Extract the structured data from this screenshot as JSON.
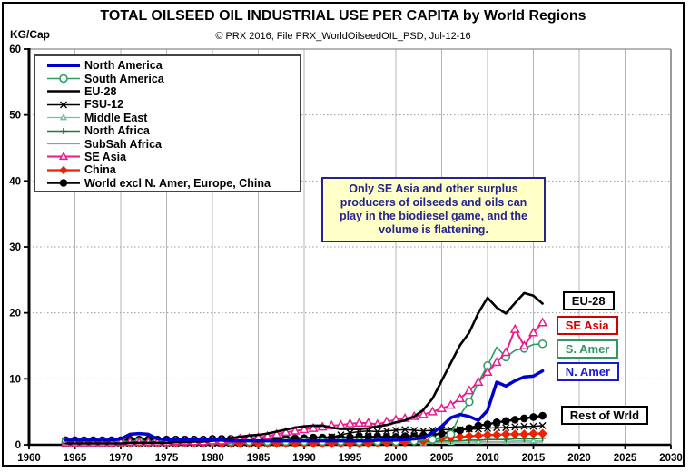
{
  "header": {
    "title": "TOTAL OILSEED OIL INDUSTRIAL USE PER CAPITA by World Regions",
    "subtitle": "© PRX 2016, File PRX_WorldOilseedOIL_PSD, Jul-12-16",
    "y_axis_unit": "KG/Cap"
  },
  "annotation": {
    "text": "Only SE Asia and other surplus producers of oilseeds and oils can play in the biodiesel game, and the volume is flattening.",
    "text_color": "#24248C",
    "background": "#FFFFC8"
  },
  "chart_data": {
    "type": "line",
    "title": "TOTAL OILSEED OIL INDUSTRIAL USE PER CAPITA by World Regions",
    "xlabel": "",
    "ylabel": "KG/Cap",
    "xlim": [
      1960,
      2030
    ],
    "ylim": [
      0,
      60
    ],
    "x_ticks": [
      1960,
      1965,
      1970,
      1975,
      1980,
      1985,
      1990,
      1995,
      2000,
      2005,
      2010,
      2015,
      2020,
      2025,
      2030
    ],
    "y_ticks": [
      0,
      10,
      20,
      30,
      40,
      50,
      60
    ],
    "grid": true,
    "legend_position": "top-left",
    "x": [
      1964,
      1965,
      1966,
      1967,
      1968,
      1969,
      1970,
      1971,
      1972,
      1973,
      1974,
      1975,
      1976,
      1977,
      1978,
      1979,
      1980,
      1981,
      1982,
      1983,
      1984,
      1985,
      1986,
      1987,
      1988,
      1989,
      1990,
      1991,
      1992,
      1993,
      1994,
      1995,
      1996,
      1997,
      1998,
      1999,
      2000,
      2001,
      2002,
      2003,
      2004,
      2005,
      2006,
      2007,
      2008,
      2009,
      2010,
      2011,
      2012,
      2013,
      2014,
      2015,
      2016
    ],
    "series": [
      {
        "name": "North America",
        "color": "#0000CC",
        "line_width": 3.5,
        "marker": "none",
        "marker_size": 0,
        "marker_every": 1,
        "values": [
          0.7,
          0.7,
          0.7,
          0.7,
          0.7,
          0.7,
          0.9,
          1.6,
          1.7,
          1.6,
          0.9,
          0.8,
          0.8,
          0.8,
          0.8,
          0.8,
          0.8,
          0.7,
          0.6,
          0.6,
          0.6,
          0.6,
          0.6,
          0.6,
          0.6,
          0.6,
          0.6,
          0.6,
          0.6,
          0.6,
          0.6,
          0.6,
          0.6,
          0.6,
          0.7,
          0.7,
          0.7,
          0.8,
          0.9,
          1.1,
          1.8,
          2.8,
          4.1,
          4.6,
          4.3,
          3.7,
          5.2,
          9.5,
          8.9,
          9.7,
          10.3,
          10.4,
          11.2
        ]
      },
      {
        "name": "South America",
        "color": "#2E9960",
        "line_width": 1.6,
        "marker": "circle-open",
        "marker_size": 4,
        "marker_every": 2,
        "values": [
          0.5,
          0.5,
          0.5,
          0.5,
          0.5,
          0.5,
          0.5,
          0.5,
          0.5,
          0.5,
          0.5,
          0.5,
          0.5,
          0.5,
          0.5,
          0.5,
          0.5,
          0.5,
          0.5,
          0.5,
          0.5,
          0.5,
          0.5,
          0.5,
          0.5,
          0.5,
          0.5,
          0.5,
          0.5,
          0.5,
          0.5,
          0.5,
          0.5,
          0.5,
          0.5,
          0.5,
          0.5,
          0.6,
          0.6,
          0.7,
          0.8,
          1.0,
          1.6,
          4.5,
          6.5,
          9.5,
          12.0,
          14.8,
          13.3,
          14.3,
          14.6,
          15.2,
          15.3
        ]
      },
      {
        "name": "EU-28",
        "color": "#000000",
        "line_width": 2.6,
        "marker": "none",
        "marker_size": 0,
        "marker_every": 1,
        "values": [
          0.2,
          0.2,
          0.2,
          0.2,
          0.2,
          0.2,
          0.2,
          0.3,
          0.3,
          0.3,
          0.3,
          0.3,
          0.4,
          0.4,
          0.5,
          0.5,
          0.6,
          0.8,
          1.0,
          1.2,
          1.4,
          1.5,
          1.7,
          2.0,
          2.3,
          2.6,
          2.8,
          2.9,
          2.9,
          2.6,
          2.4,
          2.4,
          2.4,
          2.5,
          2.8,
          3.0,
          3.4,
          3.7,
          4.3,
          5.3,
          7.0,
          9.7,
          12.4,
          15.1,
          17.0,
          20.0,
          22.3,
          20.8,
          19.9,
          21.5,
          23.0,
          22.6,
          21.4
        ]
      },
      {
        "name": "FSU-12",
        "color": "#000000",
        "line_width": 1.5,
        "marker": "x",
        "marker_size": 3.5,
        "marker_every": 1,
        "values": [
          0.2,
          0.2,
          0.2,
          0.2,
          0.2,
          0.2,
          0.2,
          0.2,
          0.2,
          0.2,
          0.2,
          0.2,
          0.2,
          0.2,
          0.2,
          0.2,
          0.2,
          0.2,
          0.2,
          0.2,
          0.2,
          0.2,
          0.3,
          0.3,
          0.3,
          0.3,
          0.4,
          0.5,
          0.8,
          1.2,
          1.5,
          1.8,
          2.0,
          2.1,
          2.0,
          2.1,
          2.2,
          2.3,
          2.2,
          2.1,
          2.2,
          2.3,
          2.3,
          2.3,
          2.4,
          2.4,
          2.5,
          2.6,
          2.6,
          2.7,
          2.8,
          2.8,
          2.9
        ]
      },
      {
        "name": "Middle East",
        "color": "#6FC49A",
        "line_width": 1.3,
        "marker": "triangle-open",
        "marker_size": 3,
        "marker_every": 3,
        "values": [
          0.2,
          0.2,
          0.2,
          0.2,
          0.2,
          0.2,
          0.2,
          0.2,
          0.2,
          0.2,
          0.2,
          0.2,
          0.2,
          0.2,
          0.2,
          0.2,
          0.2,
          0.2,
          0.2,
          0.2,
          0.2,
          0.2,
          0.2,
          0.2,
          0.2,
          0.2,
          0.3,
          0.3,
          0.3,
          0.3,
          0.3,
          0.3,
          0.3,
          0.3,
          0.3,
          0.3,
          0.3,
          0.3,
          0.3,
          0.3,
          0.4,
          0.4,
          0.4,
          0.4,
          0.4,
          0.5,
          0.5,
          0.5,
          0.5,
          0.6,
          0.6,
          0.6,
          0.6
        ]
      },
      {
        "name": "North Africa",
        "color": "#1E7A38",
        "line_width": 1.6,
        "marker": "plus",
        "marker_size": 3.5,
        "marker_every": 2,
        "values": [
          0.3,
          0.3,
          0.3,
          0.3,
          0.3,
          0.3,
          0.3,
          0.3,
          0.3,
          0.3,
          0.3,
          0.3,
          0.3,
          0.3,
          0.3,
          0.3,
          0.3,
          0.3,
          0.3,
          0.3,
          0.3,
          0.3,
          0.3,
          0.3,
          0.3,
          0.3,
          0.4,
          0.4,
          0.4,
          0.4,
          0.4,
          0.4,
          0.4,
          0.4,
          0.4,
          0.4,
          0.4,
          0.4,
          0.5,
          0.5,
          0.5,
          0.6,
          0.6,
          0.6,
          0.7,
          0.7,
          0.8,
          0.8,
          0.8,
          0.9,
          0.9,
          0.9,
          1.0
        ]
      },
      {
        "name": "SubSah Africa",
        "color": "#999999",
        "line_width": 1.2,
        "marker": "none",
        "marker_size": 0,
        "marker_every": 1,
        "values": [
          0.3,
          0.3,
          0.3,
          0.3,
          0.3,
          0.3,
          0.3,
          0.3,
          0.3,
          0.3,
          0.3,
          0.3,
          0.3,
          0.3,
          0.3,
          0.3,
          0.3,
          0.3,
          0.3,
          0.3,
          0.3,
          0.3,
          0.3,
          0.3,
          0.3,
          0.3,
          0.3,
          0.3,
          0.3,
          0.3,
          0.3,
          0.3,
          0.3,
          0.3,
          0.3,
          0.3,
          0.3,
          0.3,
          0.3,
          0.3,
          0.3,
          0.4,
          0.4,
          0.4,
          0.4,
          0.4,
          0.4,
          0.4,
          0.4,
          0.4,
          0.4,
          0.4,
          0.4
        ]
      },
      {
        "name": "SE Asia",
        "color": "#EB1A8D",
        "line_width": 2.0,
        "marker": "triangle-open",
        "marker_size": 4.5,
        "marker_every": 1,
        "values": [
          0.3,
          0.3,
          0.3,
          0.3,
          0.3,
          0.3,
          0.4,
          0.4,
          0.4,
          0.4,
          0.4,
          0.4,
          0.5,
          0.5,
          0.5,
          0.5,
          0.6,
          0.6,
          0.7,
          0.9,
          1.0,
          1.1,
          1.3,
          1.6,
          1.9,
          2.1,
          2.3,
          2.5,
          2.7,
          2.9,
          3.0,
          3.2,
          3.3,
          3.3,
          3.1,
          3.5,
          3.8,
          4.0,
          4.3,
          4.6,
          5.0,
          5.5,
          6.0,
          7.0,
          8.2,
          9.5,
          11.0,
          12.5,
          14.0,
          17.5,
          15.0,
          17.0,
          18.5
        ]
      },
      {
        "name": "China",
        "color": "#EE2200",
        "line_width": 2.2,
        "marker": "diamond",
        "marker_size": 4.5,
        "marker_every": 1,
        "values": [
          0.3,
          0.3,
          0.3,
          0.3,
          0.3,
          0.3,
          0.3,
          0.3,
          0.3,
          0.3,
          0.3,
          0.3,
          0.3,
          0.3,
          0.3,
          0.3,
          0.3,
          0.2,
          0.2,
          0.2,
          0.2,
          0.2,
          0.2,
          0.2,
          0.2,
          0.2,
          0.2,
          0.2,
          0.2,
          0.2,
          0.2,
          0.2,
          0.2,
          0.2,
          0.3,
          0.3,
          0.3,
          0.4,
          0.5,
          0.6,
          0.8,
          1.0,
          1.1,
          1.2,
          1.3,
          1.4,
          1.5,
          1.5,
          1.6,
          1.6,
          1.6,
          1.7,
          1.7
        ]
      },
      {
        "name": "World excl N. Amer, Europe, China",
        "color": "#000000",
        "line_width": 2.4,
        "marker": "circle",
        "marker_size": 3.8,
        "marker_every": 1,
        "values": [
          0.7,
          0.7,
          0.7,
          0.7,
          0.7,
          0.7,
          0.7,
          0.8,
          0.8,
          0.8,
          0.8,
          0.8,
          0.8,
          0.8,
          0.8,
          0.8,
          0.9,
          0.9,
          0.9,
          0.9,
          0.9,
          0.9,
          1.0,
          1.0,
          1.0,
          1.0,
          1.0,
          1.1,
          1.1,
          1.1,
          1.1,
          1.1,
          1.2,
          1.2,
          1.2,
          1.2,
          1.2,
          1.3,
          1.3,
          1.4,
          1.5,
          1.7,
          1.9,
          2.2,
          2.5,
          2.9,
          3.1,
          3.4,
          3.6,
          3.8,
          4.0,
          4.2,
          4.4
        ]
      }
    ],
    "end_labels": [
      {
        "text": "EU-28",
        "color": "#000000",
        "year": 2018.0,
        "value": 21.6
      },
      {
        "text": "SE Asia",
        "color": "#D40000",
        "year": 2017.3,
        "value": 17.9
      },
      {
        "text": "S. Amer",
        "color": "#2E9960",
        "year": 2017.3,
        "value": 14.3
      },
      {
        "text": "N. Amer",
        "color": "#1A1AD6",
        "year": 2017.3,
        "value": 10.9
      },
      {
        "text": "Rest of Wrld",
        "color": "#000000",
        "year": 2017.8,
        "value": 4.2
      }
    ]
  }
}
